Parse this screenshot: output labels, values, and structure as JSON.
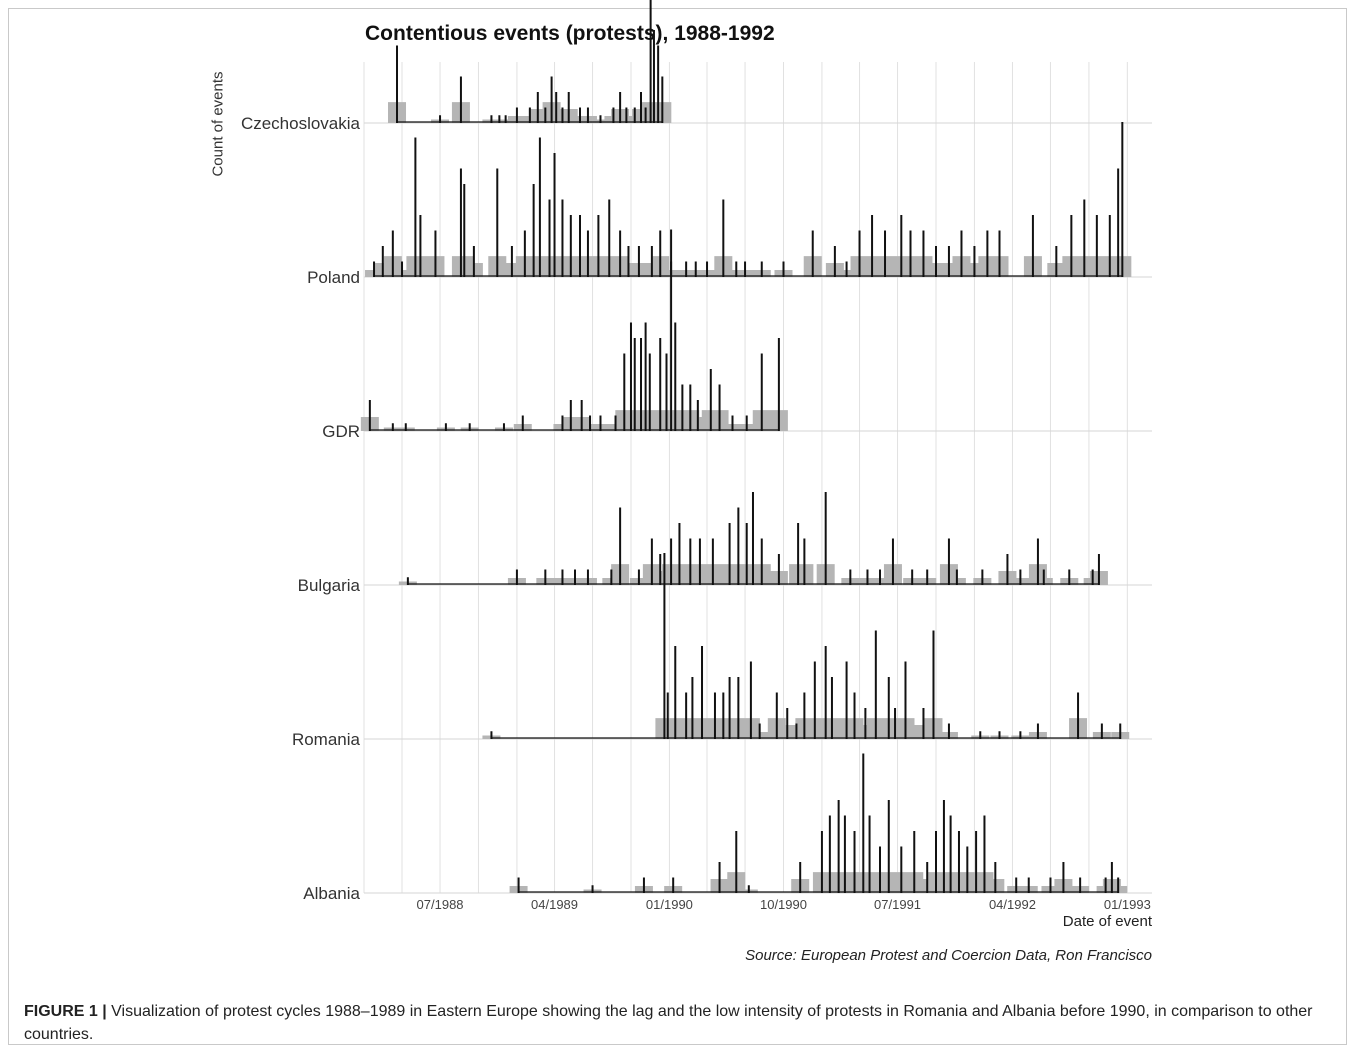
{
  "chart_data": {
    "type": "area",
    "title": "Contentious events (protests), 1988-1992",
    "ylabel": "Count of events",
    "xlabel": "Date of event",
    "source": "Source: European Protest and Coercion Data, Ron Francisco",
    "x_range": [
      "1988-01",
      "1993-03"
    ],
    "x_ticks": [
      "07/1988",
      "04/1989",
      "01/1990",
      "10/1990",
      "07/1991",
      "04/1992",
      "01/1993"
    ],
    "grid": true,
    "series": [
      {
        "name": "Czechoslovakia",
        "events": [
          [
            "1988-03-20",
            5
          ],
          [
            "1988-07-01",
            0.5
          ],
          [
            "1988-08-20",
            3
          ],
          [
            "1988-11-01",
            0.5
          ],
          [
            "1988-11-20",
            0.5
          ],
          [
            "1988-12-05",
            0.5
          ],
          [
            "1989-01-01",
            1
          ],
          [
            "1989-02-01",
            1
          ],
          [
            "1989-02-20",
            2
          ],
          [
            "1989-03-10",
            1
          ],
          [
            "1989-03-25",
            3
          ],
          [
            "1989-04-05",
            2
          ],
          [
            "1989-04-20",
            1
          ],
          [
            "1989-05-05",
            2
          ],
          [
            "1989-06-01",
            1
          ],
          [
            "1989-06-20",
            1
          ],
          [
            "1989-07-20",
            0.5
          ],
          [
            "1989-08-20",
            1
          ],
          [
            "1989-09-05",
            2
          ],
          [
            "1989-09-20",
            1
          ],
          [
            "1989-10-10",
            1
          ],
          [
            "1989-10-25",
            2
          ],
          [
            "1989-11-05",
            1
          ],
          [
            "1989-11-17",
            10
          ],
          [
            "1989-11-25",
            6
          ],
          [
            "1989-12-05",
            5
          ],
          [
            "1989-12-15",
            3
          ]
        ]
      },
      {
        "name": "Poland",
        "events": [
          [
            "1988-01-25",
            1
          ],
          [
            "1988-02-15",
            2
          ],
          [
            "1988-03-10",
            3
          ],
          [
            "1988-04-01",
            1
          ],
          [
            "1988-05-03",
            9
          ],
          [
            "1988-05-15",
            4
          ],
          [
            "1988-06-20",
            3
          ],
          [
            "1988-08-20",
            7
          ],
          [
            "1988-08-28",
            6
          ],
          [
            "1988-09-20",
            2
          ],
          [
            "1988-11-15",
            7
          ],
          [
            "1988-12-20",
            2
          ],
          [
            "1989-01-20",
            3
          ],
          [
            "1989-02-10",
            6
          ],
          [
            "1989-02-25",
            9
          ],
          [
            "1989-03-20",
            5
          ],
          [
            "1989-04-01",
            8
          ],
          [
            "1989-04-20",
            5
          ],
          [
            "1989-05-10",
            4
          ],
          [
            "1989-06-01",
            4
          ],
          [
            "1989-06-20",
            3
          ],
          [
            "1989-07-15",
            4
          ],
          [
            "1989-08-10",
            5
          ],
          [
            "1989-09-05",
            3
          ],
          [
            "1989-09-25",
            2
          ],
          [
            "1989-10-20",
            2
          ],
          [
            "1989-11-20",
            2
          ],
          [
            "1989-12-10",
            3
          ],
          [
            "1990-01-05",
            1
          ],
          [
            "1990-02-10",
            1
          ],
          [
            "1990-03-05",
            1
          ],
          [
            "1990-04-01",
            1
          ],
          [
            "1990-05-10",
            5
          ],
          [
            "1990-06-10",
            1
          ],
          [
            "1990-07-01",
            1
          ],
          [
            "1990-08-10",
            1
          ],
          [
            "1990-10-01",
            1
          ],
          [
            "1990-12-10",
            3
          ],
          [
            "1991-02-01",
            2
          ],
          [
            "1991-03-01",
            1
          ],
          [
            "1991-04-01",
            3
          ],
          [
            "1991-05-01",
            4
          ],
          [
            "1991-06-01",
            3
          ],
          [
            "1991-07-10",
            4
          ],
          [
            "1991-08-01",
            3
          ],
          [
            "1991-09-01",
            3
          ],
          [
            "1991-10-01",
            2
          ],
          [
            "1991-11-01",
            2
          ],
          [
            "1991-12-01",
            3
          ],
          [
            "1992-01-01",
            2
          ],
          [
            "1992-02-01",
            3
          ],
          [
            "1992-03-01",
            3
          ],
          [
            "1992-05-20",
            4
          ],
          [
            "1992-07-15",
            2
          ],
          [
            "1992-08-20",
            4
          ],
          [
            "1992-09-20",
            5
          ],
          [
            "1992-10-20",
            4
          ],
          [
            "1992-11-20",
            4
          ],
          [
            "1992-12-10",
            7
          ],
          [
            "1992-12-20",
            10
          ]
        ]
      },
      {
        "name": "GDR",
        "events": [
          [
            "1988-01-15",
            2
          ],
          [
            "1988-03-10",
            0.5
          ],
          [
            "1988-04-10",
            0.5
          ],
          [
            "1988-07-15",
            0.5
          ],
          [
            "1988-09-10",
            0.5
          ],
          [
            "1988-12-01",
            0.5
          ],
          [
            "1989-01-15",
            1
          ],
          [
            "1989-04-20",
            1
          ],
          [
            "1989-05-10",
            2
          ],
          [
            "1989-06-05",
            2
          ],
          [
            "1989-06-25",
            1
          ],
          [
            "1989-07-20",
            1
          ],
          [
            "1989-08-25",
            1
          ],
          [
            "1989-09-15",
            5
          ],
          [
            "1989-10-01",
            7
          ],
          [
            "1989-10-10",
            6
          ],
          [
            "1989-10-25",
            6
          ],
          [
            "1989-11-05",
            7
          ],
          [
            "1989-11-15",
            5
          ],
          [
            "1989-12-10",
            6
          ],
          [
            "1989-12-25",
            5
          ],
          [
            "1990-01-05",
            13
          ],
          [
            "1990-01-15",
            7
          ],
          [
            "1990-02-01",
            3
          ],
          [
            "1990-02-20",
            3
          ],
          [
            "1990-03-10",
            2
          ],
          [
            "1990-04-10",
            4
          ],
          [
            "1990-05-01",
            3
          ],
          [
            "1990-06-01",
            1
          ],
          [
            "1990-07-05",
            1
          ],
          [
            "1990-08-10",
            5
          ],
          [
            "1990-09-20",
            6
          ]
        ]
      },
      {
        "name": "Bulgaria",
        "events": [
          [
            "1988-04-15",
            0.5
          ],
          [
            "1989-01-01",
            1
          ],
          [
            "1989-03-10",
            1
          ],
          [
            "1989-04-20",
            1
          ],
          [
            "1989-05-20",
            1
          ],
          [
            "1989-06-20",
            1
          ],
          [
            "1989-08-15",
            1
          ],
          [
            "1989-09-05",
            5
          ],
          [
            "1989-10-20",
            1
          ],
          [
            "1989-11-20",
            3
          ],
          [
            "1989-12-10",
            2
          ],
          [
            "1990-01-05",
            3
          ],
          [
            "1990-01-25",
            4
          ],
          [
            "1990-02-20",
            3
          ],
          [
            "1990-03-15",
            3
          ],
          [
            "1990-04-15",
            3
          ],
          [
            "1990-05-25",
            4
          ],
          [
            "1990-06-15",
            5
          ],
          [
            "1990-07-05",
            4
          ],
          [
            "1990-07-20",
            6
          ],
          [
            "1990-08-10",
            3
          ],
          [
            "1990-09-20",
            2
          ],
          [
            "1990-11-05",
            4
          ],
          [
            "1990-11-20",
            3
          ],
          [
            "1991-01-10",
            6
          ],
          [
            "1991-03-10",
            1
          ],
          [
            "1991-04-20",
            1
          ],
          [
            "1991-05-20",
            1
          ],
          [
            "1991-06-20",
            3
          ],
          [
            "1991-08-05",
            1
          ],
          [
            "1991-09-10",
            1
          ],
          [
            "1991-11-01",
            3
          ],
          [
            "1991-11-20",
            1
          ],
          [
            "1992-01-20",
            1
          ],
          [
            "1992-03-20",
            2
          ],
          [
            "1992-04-20",
            1
          ],
          [
            "1992-06-01",
            3
          ],
          [
            "1992-06-15",
            1
          ],
          [
            "1992-08-15",
            1
          ],
          [
            "1992-10-10",
            1
          ],
          [
            "1992-10-25",
            2
          ]
        ]
      },
      {
        "name": "Romania",
        "events": [
          [
            "1988-11-01",
            0.5
          ],
          [
            "1989-12-20",
            12
          ],
          [
            "1989-12-28",
            3
          ],
          [
            "1990-01-15",
            6
          ],
          [
            "1990-02-10",
            3
          ],
          [
            "1990-02-25",
            4
          ],
          [
            "1990-03-20",
            6
          ],
          [
            "1990-04-20",
            3
          ],
          [
            "1990-05-10",
            3
          ],
          [
            "1990-05-25",
            4
          ],
          [
            "1990-06-15",
            4
          ],
          [
            "1990-07-15",
            5
          ],
          [
            "1990-08-05",
            1
          ],
          [
            "1990-09-15",
            3
          ],
          [
            "1990-10-10",
            2
          ],
          [
            "1990-11-01",
            1
          ],
          [
            "1990-11-20",
            3
          ],
          [
            "1990-12-15",
            5
          ],
          [
            "1991-01-10",
            6
          ],
          [
            "1991-01-25",
            4
          ],
          [
            "1991-03-01",
            5
          ],
          [
            "1991-03-20",
            3
          ],
          [
            "1991-04-15",
            2
          ],
          [
            "1991-05-10",
            7
          ],
          [
            "1991-06-10",
            4
          ],
          [
            "1991-06-25",
            2
          ],
          [
            "1991-07-20",
            5
          ],
          [
            "1991-09-01",
            2
          ],
          [
            "1991-09-25",
            7
          ],
          [
            "1991-11-01",
            1
          ],
          [
            "1992-01-15",
            0.5
          ],
          [
            "1992-03-01",
            0.5
          ],
          [
            "1992-04-20",
            0.5
          ],
          [
            "1992-06-01",
            1
          ],
          [
            "1992-09-05",
            3
          ],
          [
            "1992-11-01",
            1
          ],
          [
            "1992-12-15",
            1
          ]
        ]
      },
      {
        "name": "Albania",
        "events": [
          [
            "1989-01-05",
            1
          ],
          [
            "1989-07-01",
            0.5
          ],
          [
            "1989-11-01",
            1
          ],
          [
            "1990-01-10",
            1
          ],
          [
            "1990-05-01",
            2
          ],
          [
            "1990-06-10",
            4
          ],
          [
            "1990-07-10",
            0.5
          ],
          [
            "1990-11-10",
            2
          ],
          [
            "1991-01-01",
            4
          ],
          [
            "1991-01-20",
            5
          ],
          [
            "1991-02-10",
            6
          ],
          [
            "1991-02-25",
            5
          ],
          [
            "1991-03-20",
            4
          ],
          [
            "1991-04-10",
            9
          ],
          [
            "1991-04-25",
            5
          ],
          [
            "1991-05-20",
            3
          ],
          [
            "1991-06-10",
            6
          ],
          [
            "1991-07-10",
            3
          ],
          [
            "1991-08-10",
            4
          ],
          [
            "1991-09-10",
            2
          ],
          [
            "1991-10-01",
            4
          ],
          [
            "1991-10-20",
            6
          ],
          [
            "1991-11-05",
            5
          ],
          [
            "1991-11-25",
            4
          ],
          [
            "1991-12-15",
            3
          ],
          [
            "1992-01-05",
            4
          ],
          [
            "1992-01-25",
            5
          ],
          [
            "1992-02-20",
            2
          ],
          [
            "1992-04-10",
            1
          ],
          [
            "1992-05-10",
            1
          ],
          [
            "1992-07-01",
            1
          ],
          [
            "1992-08-01",
            2
          ],
          [
            "1992-09-10",
            1
          ],
          [
            "1992-11-10",
            1
          ],
          [
            "1992-11-25",
            2
          ],
          [
            "1992-12-10",
            1
          ]
        ]
      }
    ]
  },
  "caption": {
    "label": "FIGURE 1 |",
    "text": " Visualization of protest cycles 1988–1989 in Eastern Europe showing the lag and the low intensity of protests in Romania and Albania before 1990, in comparison to other countries."
  },
  "colors": {
    "line": "#111111",
    "fill": "#b5b5b5",
    "grid": "#e1e1e1",
    "baseline": "#d6d6d6",
    "frame": "#c9c9c9"
  }
}
